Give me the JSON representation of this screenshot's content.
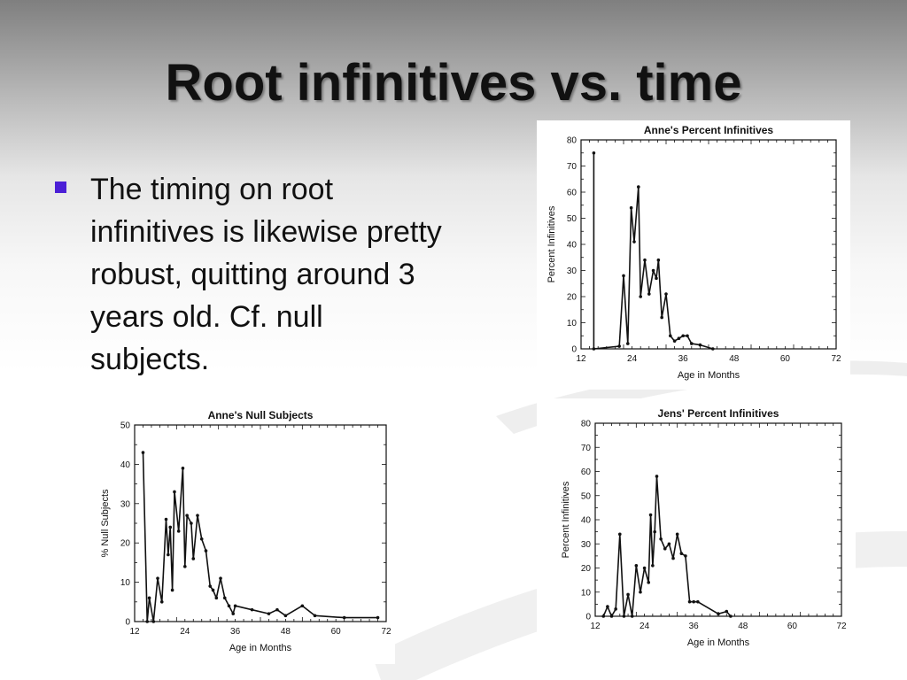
{
  "slide": {
    "title": "Root infinitives vs. time",
    "bullet": "The timing on root infinitives is likewise pretty robust, quitting around 3 years old. Cf. null subjects."
  },
  "colors": {
    "bullet": "#4b1fd6",
    "line": "#111111"
  },
  "chart_data": [
    {
      "id": "anne-infinitives",
      "type": "line",
      "title": "Anne's Percent Infinitives",
      "xlabel": "Age in Months",
      "ylabel": "Percent Infinitives",
      "xlim": [
        12,
        72
      ],
      "ylim": [
        0,
        80
      ],
      "xticks": [
        12,
        24,
        36,
        48,
        60,
        72
      ],
      "yticks": [
        0,
        10,
        20,
        30,
        40,
        50,
        60,
        70,
        80
      ],
      "series": [
        {
          "x": [
            15,
            15,
            21,
            22,
            23,
            23.8,
            24.5,
            25.5,
            26,
            27,
            28,
            29,
            29.7,
            30.2,
            31,
            32,
            33,
            34,
            35,
            36,
            37,
            38,
            40,
            43
          ],
          "y": [
            75,
            0,
            1,
            28,
            2,
            54,
            41,
            62,
            20,
            34,
            21,
            30,
            27,
            34,
            12,
            21,
            5,
            3,
            4,
            5,
            5,
            2,
            1.5,
            0
          ]
        }
      ]
    },
    {
      "id": "anne-null-subjects",
      "type": "line",
      "title": "Anne's Null Subjects",
      "xlabel": "Age in Months",
      "ylabel": "% Null Subjects",
      "xlim": [
        12,
        72
      ],
      "ylim": [
        0,
        50
      ],
      "xticks": [
        12,
        24,
        36,
        48,
        60,
        72
      ],
      "yticks": [
        0,
        10,
        20,
        30,
        40,
        50
      ],
      "series": [
        {
          "x": [
            14,
            15,
            15.5,
            16.5,
            17.5,
            18.5,
            19.5,
            20,
            20.5,
            21,
            21.5,
            22.5,
            23.5,
            24,
            24.5,
            25.5,
            26,
            27,
            28,
            29,
            30,
            30.7,
            31.5,
            32.5,
            33.5,
            34.5,
            35.5,
            36,
            40,
            44,
            46,
            48,
            52,
            55,
            62,
            70
          ],
          "y": [
            43,
            0,
            6,
            0,
            11,
            5,
            26,
            17,
            24,
            8,
            33,
            23,
            39,
            14,
            27,
            25,
            16,
            27,
            21,
            18,
            9,
            8,
            6,
            11,
            6,
            4,
            2,
            4,
            3,
            2,
            3,
            1.5,
            4,
            1.5,
            1,
            1
          ]
        }
      ]
    },
    {
      "id": "jens-infinitives",
      "type": "line",
      "title": "Jens' Percent Infinitives",
      "xlabel": "Age in Months",
      "ylabel": "Percent Infinitives",
      "xlim": [
        12,
        72
      ],
      "ylim": [
        0,
        80
      ],
      "xticks": [
        12,
        24,
        36,
        48,
        60,
        72
      ],
      "yticks": [
        0,
        10,
        20,
        30,
        40,
        50,
        60,
        70,
        80
      ],
      "series": [
        {
          "x": [
            14,
            15,
            16,
            17,
            18,
            19,
            20,
            21,
            22,
            23,
            24,
            25,
            25.5,
            26,
            26.5,
            27,
            28,
            29,
            30,
            31,
            32,
            33,
            34,
            35,
            36,
            37,
            42,
            44,
            45
          ],
          "y": [
            0,
            4,
            0,
            3,
            34,
            0,
            9,
            0,
            21,
            10,
            20,
            14,
            42,
            21,
            35,
            58,
            32,
            28,
            30,
            24,
            34,
            26,
            25,
            6,
            6,
            6,
            1,
            2,
            0
          ]
        }
      ]
    }
  ]
}
